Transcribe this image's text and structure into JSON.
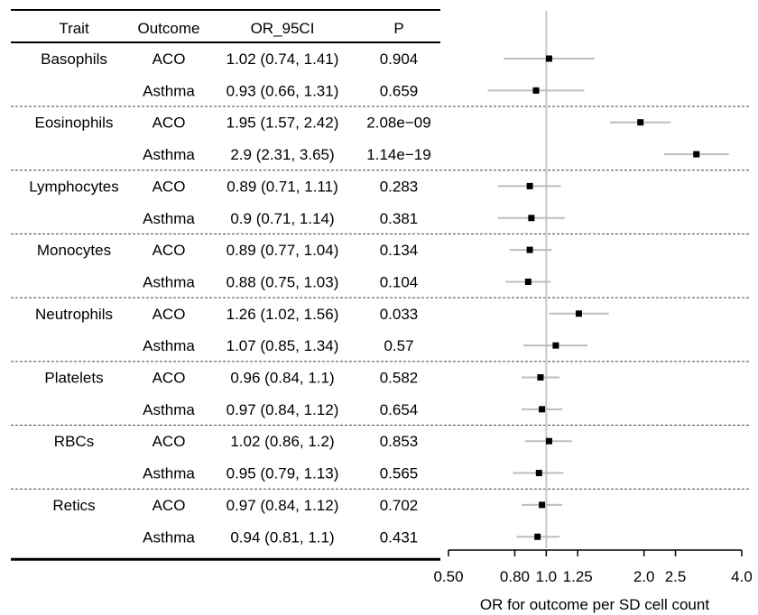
{
  "table": {
    "headers": [
      "Trait",
      "Outcome",
      "OR_95CI",
      "P"
    ],
    "rows": [
      {
        "trait": "Basophils",
        "outcome": "ACO",
        "or_ci": "1.02 (0.74, 1.41)",
        "p": "0.904"
      },
      {
        "trait": "",
        "outcome": "Asthma",
        "or_ci": "0.93 (0.66, 1.31)",
        "p": "0.659"
      },
      {
        "trait": "Eosinophils",
        "outcome": "ACO",
        "or_ci": "1.95 (1.57, 2.42)",
        "p": "2.08e−09"
      },
      {
        "trait": "",
        "outcome": "Asthma",
        "or_ci": "2.9 (2.31, 3.65)",
        "p": "1.14e−19"
      },
      {
        "trait": "Lymphocytes",
        "outcome": "ACO",
        "or_ci": "0.89 (0.71, 1.11)",
        "p": "0.283"
      },
      {
        "trait": "",
        "outcome": "Asthma",
        "or_ci": "0.9 (0.71, 1.14)",
        "p": "0.381"
      },
      {
        "trait": "Monocytes",
        "outcome": "ACO",
        "or_ci": "0.89 (0.77, 1.04)",
        "p": "0.134"
      },
      {
        "trait": "",
        "outcome": "Asthma",
        "or_ci": "0.88 (0.75, 1.03)",
        "p": "0.104"
      },
      {
        "trait": "Neutrophils",
        "outcome": "ACO",
        "or_ci": "1.26 (1.02, 1.56)",
        "p": "0.033"
      },
      {
        "trait": "",
        "outcome": "Asthma",
        "or_ci": "1.07 (0.85, 1.34)",
        "p": "0.57"
      },
      {
        "trait": "Platelets",
        "outcome": "ACO",
        "or_ci": "0.96 (0.84, 1.1)",
        "p": "0.582"
      },
      {
        "trait": "",
        "outcome": "Asthma",
        "or_ci": "0.97 (0.84, 1.12)",
        "p": "0.654"
      },
      {
        "trait": "RBCs",
        "outcome": "ACO",
        "or_ci": "1.02 (0.86, 1.2)",
        "p": "0.853"
      },
      {
        "trait": "",
        "outcome": "Asthma",
        "or_ci": "0.95 (0.79, 1.13)",
        "p": "0.565"
      },
      {
        "trait": "Retics",
        "outcome": "ACO",
        "or_ci": "0.97 (0.84, 1.12)",
        "p": "0.702"
      },
      {
        "trait": "",
        "outcome": "Asthma",
        "or_ci": "0.94 (0.81, 1.1)",
        "p": "0.431"
      }
    ]
  },
  "chart_data": {
    "type": "scatter",
    "subtype": "forest-plot",
    "x_scale": "log",
    "xlim": [
      0.5,
      4.0
    ],
    "xticks": [
      0.5,
      0.8,
      1.0,
      1.25,
      2.0,
      2.5,
      4.0
    ],
    "xtick_labels": [
      "0.50",
      "0.80",
      "1.0",
      "1.25",
      "2.0",
      "2.5",
      "4.0"
    ],
    "xlabel": "OR for outcome per SD cell count",
    "reference_line": 1.0,
    "points": [
      {
        "or": 1.02,
        "lo": 0.74,
        "hi": 1.41
      },
      {
        "or": 0.93,
        "lo": 0.66,
        "hi": 1.31
      },
      {
        "or": 1.95,
        "lo": 1.57,
        "hi": 2.42
      },
      {
        "or": 2.9,
        "lo": 2.31,
        "hi": 3.65
      },
      {
        "or": 0.89,
        "lo": 0.71,
        "hi": 1.11
      },
      {
        "or": 0.9,
        "lo": 0.71,
        "hi": 1.14
      },
      {
        "or": 0.89,
        "lo": 0.77,
        "hi": 1.04
      },
      {
        "or": 0.88,
        "lo": 0.75,
        "hi": 1.03
      },
      {
        "or": 1.26,
        "lo": 1.02,
        "hi": 1.56
      },
      {
        "or": 1.07,
        "lo": 0.85,
        "hi": 1.34
      },
      {
        "or": 0.96,
        "lo": 0.84,
        "hi": 1.1
      },
      {
        "or": 0.97,
        "lo": 0.84,
        "hi": 1.12
      },
      {
        "or": 1.02,
        "lo": 0.86,
        "hi": 1.2
      },
      {
        "or": 0.95,
        "lo": 0.79,
        "hi": 1.13
      },
      {
        "or": 0.97,
        "lo": 0.84,
        "hi": 1.12
      },
      {
        "or": 0.94,
        "lo": 0.81,
        "hi": 1.1
      }
    ],
    "colors": {
      "ci": "#bdbdbd",
      "point": "#000000",
      "reference": "#c8c8c8"
    },
    "grid": false,
    "legend": "none"
  }
}
